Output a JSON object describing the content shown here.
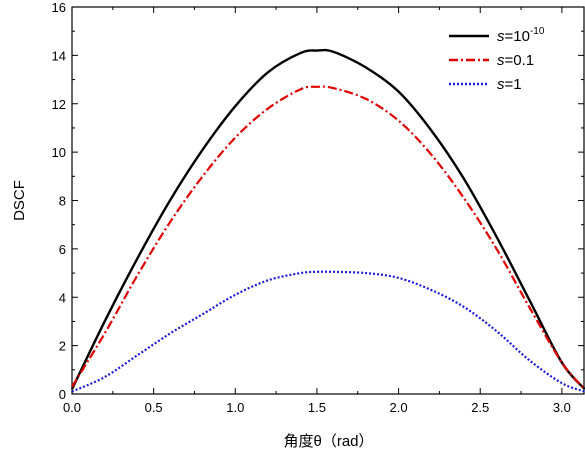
{
  "chart_data": {
    "type": "line",
    "xlabel": "角度θ（rad）",
    "ylabel": "DSCF",
    "xlim": [
      0.0,
      3.14159
    ],
    "ylim": [
      0,
      16
    ],
    "xticks": [
      "0.0",
      "0.5",
      "1.0",
      "1.5",
      "2.0",
      "2.5",
      "3.0"
    ],
    "yticks": [
      "0",
      "2",
      "4",
      "6",
      "8",
      "10",
      "12",
      "14",
      "16"
    ],
    "grid": false,
    "legend_position": "top-right",
    "series": [
      {
        "legend_prefix": "s",
        "legend_rest": "=10",
        "legend_sup": "-10",
        "color": "#000000",
        "dash": "solid",
        "x": [
          0.0,
          0.2,
          0.4,
          0.6,
          0.8,
          1.0,
          1.2,
          1.4,
          1.5,
          1.6,
          1.8,
          2.0,
          2.2,
          2.4,
          2.6,
          2.8,
          3.0,
          3.14
        ],
        "y": [
          0.2,
          3.0,
          5.6,
          8.0,
          10.1,
          11.9,
          13.3,
          14.1,
          14.2,
          14.15,
          13.5,
          12.5,
          10.9,
          8.9,
          6.5,
          3.9,
          1.3,
          0.2
        ]
      },
      {
        "legend_prefix": "s",
        "legend_rest": "=0.1",
        "legend_sup": "",
        "color": "#e00000",
        "dash": "dashdot",
        "x": [
          0.0,
          0.2,
          0.4,
          0.6,
          0.8,
          1.0,
          1.2,
          1.4,
          1.5,
          1.6,
          1.8,
          2.0,
          2.2,
          2.4,
          2.6,
          2.8,
          3.0,
          3.14
        ],
        "y": [
          0.3,
          2.5,
          4.9,
          7.1,
          9.0,
          10.6,
          11.8,
          12.6,
          12.7,
          12.65,
          12.2,
          11.3,
          9.9,
          8.1,
          6.0,
          3.6,
          1.3,
          0.2
        ]
      },
      {
        "legend_prefix": "s",
        "legend_rest": "=1",
        "legend_sup": "",
        "color": "#1a1adb",
        "dash": "dot",
        "x": [
          0.0,
          0.2,
          0.4,
          0.6,
          0.8,
          1.0,
          1.2,
          1.4,
          1.5,
          1.6,
          1.8,
          2.0,
          2.2,
          2.4,
          2.6,
          2.8,
          3.0,
          3.14
        ],
        "y": [
          0.1,
          0.7,
          1.6,
          2.5,
          3.3,
          4.1,
          4.7,
          5.0,
          5.05,
          5.05,
          5.0,
          4.8,
          4.3,
          3.6,
          2.6,
          1.4,
          0.45,
          0.1
        ]
      }
    ]
  }
}
